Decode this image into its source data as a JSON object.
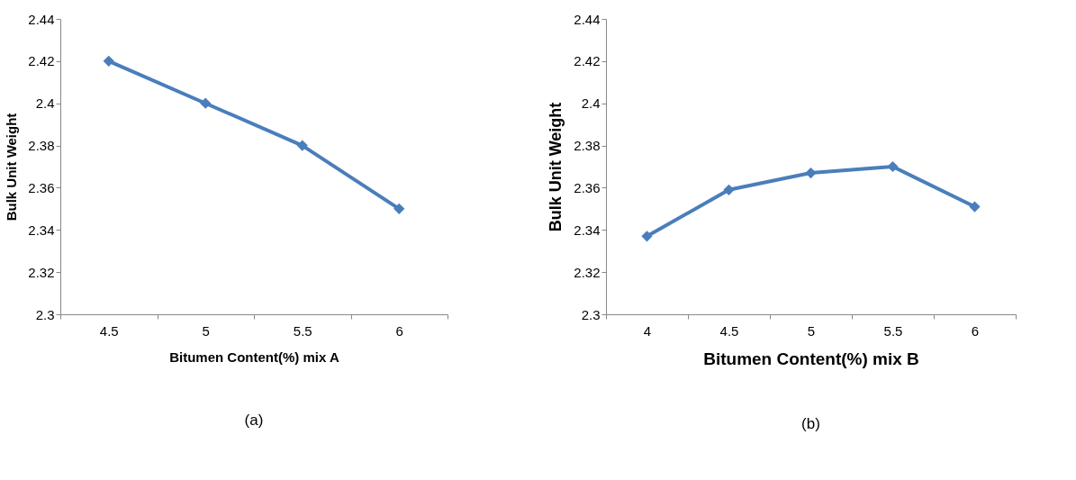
{
  "chart_data": [
    {
      "type": "line",
      "categories": [
        "4.5",
        "5",
        "5.5",
        "6"
      ],
      "xlabel": "Bitumen Content(%) mix A",
      "ylabel": "Bulk Unit Weight",
      "series": [
        {
          "color": "#4a7ebb",
          "values": [
            2.42,
            2.4,
            2.38,
            2.35
          ]
        }
      ],
      "ylim": [
        2.3,
        2.44
      ],
      "yticks": [
        2.3,
        2.32,
        2.34,
        2.36,
        2.38,
        2.4,
        2.42,
        2.44
      ],
      "grid": false,
      "legend": false,
      "marker": "diamond",
      "line_style": "solid",
      "annotations": [
        "(a)"
      ]
    },
    {
      "type": "line",
      "categories": [
        "4",
        "4.5",
        "5",
        "5.5",
        "6"
      ],
      "xlabel": "Bitumen Content(%) mix B",
      "ylabel": "Bulk Unit Weight",
      "series": [
        {
          "color": "#4a7ebb",
          "values": [
            2.337,
            2.359,
            2.367,
            2.37,
            2.351
          ]
        }
      ],
      "ylim": [
        2.3,
        2.44
      ],
      "yticks": [
        2.3,
        2.32,
        2.34,
        2.36,
        2.38,
        2.4,
        2.42,
        2.44
      ],
      "grid": false,
      "legend": false,
      "marker": "diamond",
      "line_style": "solid",
      "annotations": [
        "(b)"
      ]
    }
  ]
}
